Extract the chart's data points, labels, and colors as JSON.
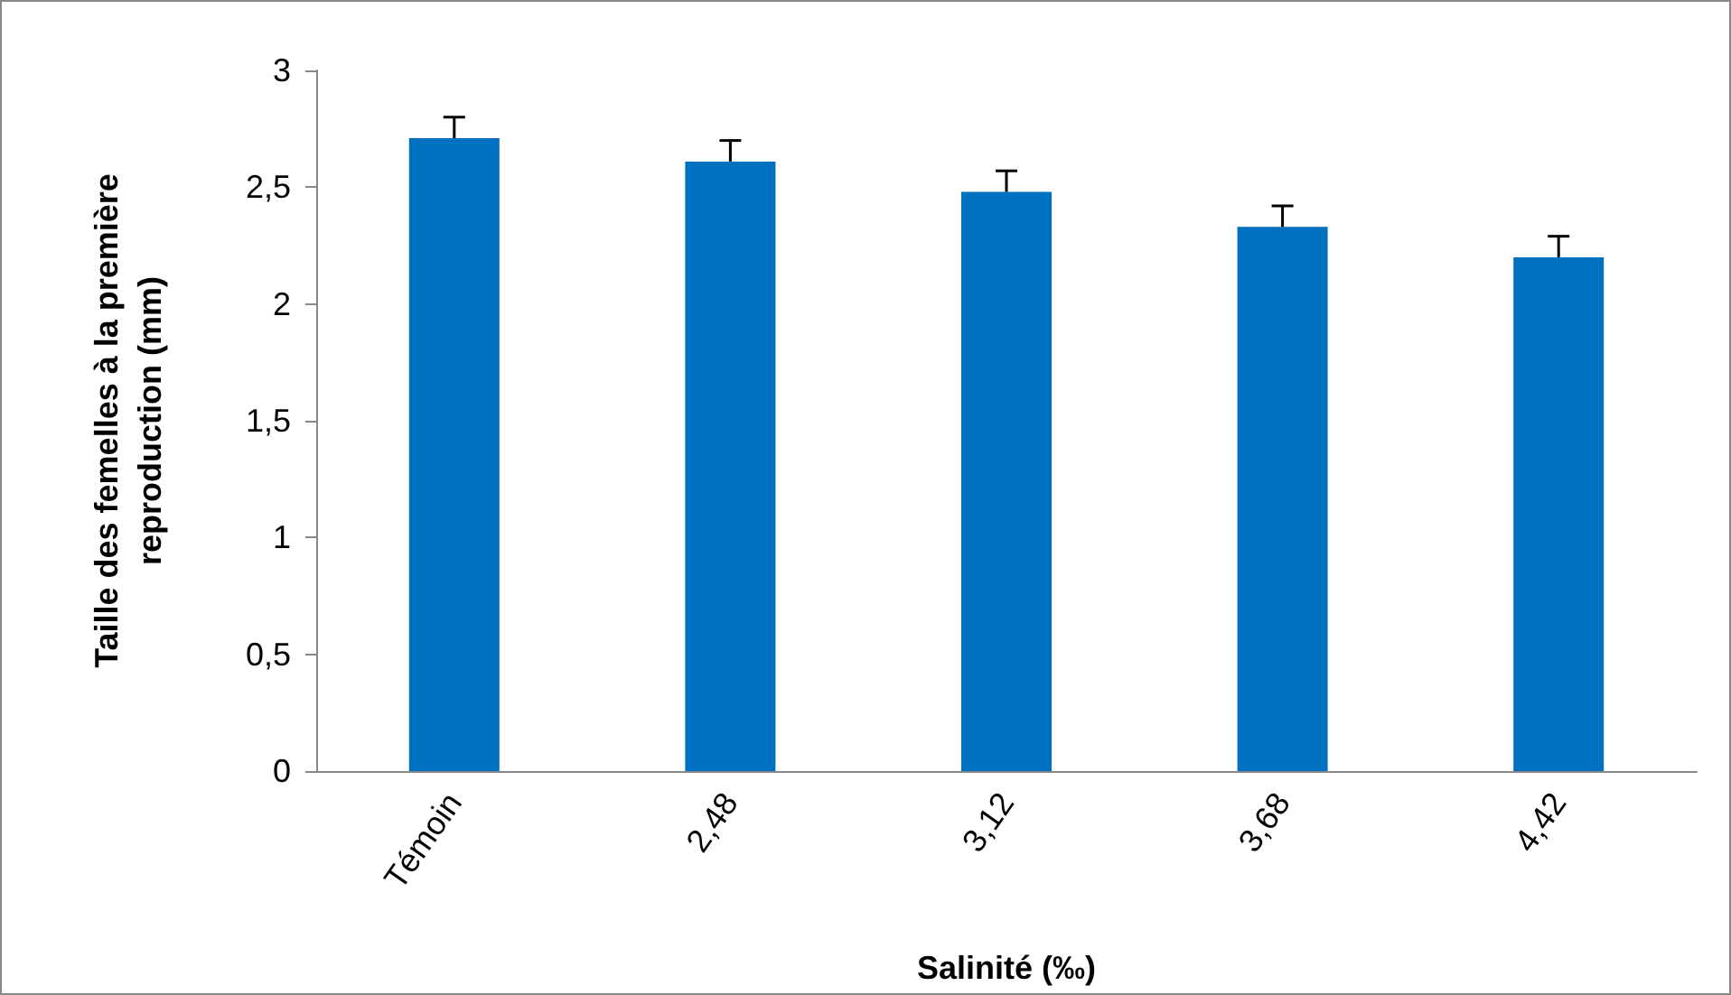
{
  "chart_data": {
    "type": "bar",
    "xlabel": "Salinité (‰)",
    "ylabel": "Taille des femelles à la première\nreproduction (mm)",
    "categories": [
      "Témoin",
      "2,48",
      "3,12",
      "3,68",
      "4,42"
    ],
    "values": [
      2.71,
      2.61,
      2.48,
      2.33,
      2.2
    ],
    "errors": [
      [
        2.71,
        2.8
      ],
      [
        2.61,
        2.7
      ],
      [
        2.48,
        2.57
      ],
      [
        2.33,
        2.42
      ],
      [
        2.2,
        2.29
      ]
    ],
    "color": "#0070c0",
    "ylim": [
      0,
      3
    ],
    "yticks": [
      {
        "value": 0,
        "label": "0"
      },
      {
        "value": 0.5,
        "label": "0,5"
      },
      {
        "value": 1,
        "label": "1"
      },
      {
        "value": 1.5,
        "label": "1,5"
      },
      {
        "value": 2,
        "label": "2"
      },
      {
        "value": 2.5,
        "label": "2,5"
      },
      {
        "value": 3,
        "label": "3"
      }
    ],
    "grid": false
  }
}
